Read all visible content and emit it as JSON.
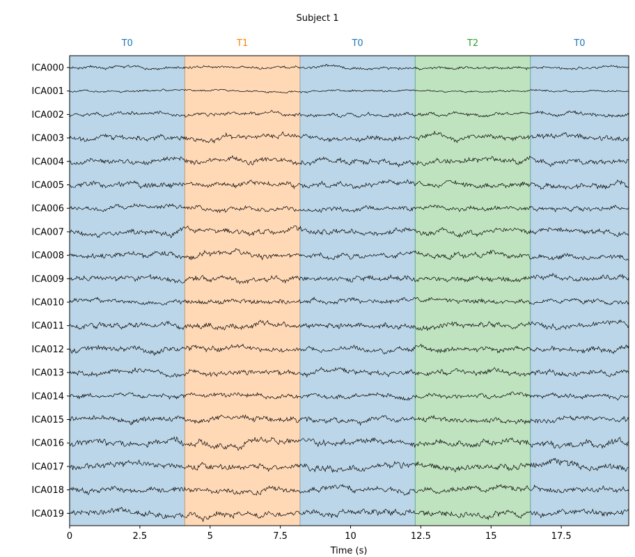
{
  "chart_data": {
    "type": "line",
    "title": "Subject 1",
    "xlabel": "Time (s)",
    "ylabel": "",
    "xlim": [
      0,
      19.9
    ],
    "xticks": [
      0,
      2.5,
      5,
      7.5,
      10,
      12.5,
      15,
      17.5
    ],
    "xtick_labels": [
      "0",
      "2.5",
      "5",
      "7.5",
      "10",
      "12.5",
      "15",
      "17.5"
    ],
    "grid": false,
    "channels": [
      "ICA000",
      "ICA001",
      "ICA002",
      "ICA003",
      "ICA004",
      "ICA005",
      "ICA006",
      "ICA007",
      "ICA008",
      "ICA009",
      "ICA010",
      "ICA011",
      "ICA012",
      "ICA013",
      "ICA014",
      "ICA015",
      "ICA016",
      "ICA017",
      "ICA018",
      "ICA019"
    ],
    "segments": [
      {
        "label": "T0",
        "start": 0,
        "end": 4.1,
        "color": "#1f77b4"
      },
      {
        "label": "T1",
        "start": 4.1,
        "end": 8.2,
        "color": "#ff7f0e"
      },
      {
        "label": "T0",
        "start": 8.2,
        "end": 12.3,
        "color": "#1f77b4"
      },
      {
        "label": "T2",
        "start": 12.3,
        "end": 16.4,
        "color": "#2ca02c"
      },
      {
        "label": "T0",
        "start": 16.4,
        "end": 19.9,
        "color": "#1f77b4"
      }
    ],
    "segment_alpha": 0.3,
    "trace_color": "#000000"
  }
}
